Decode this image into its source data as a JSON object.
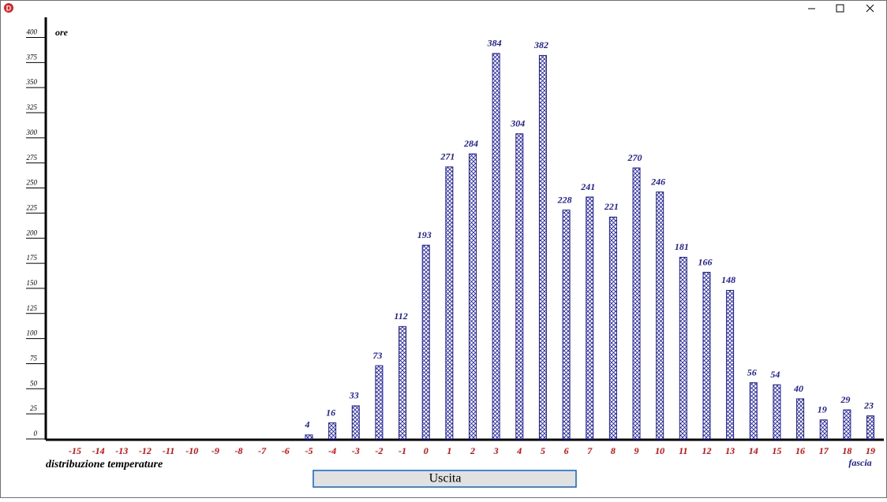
{
  "chart_data": {
    "type": "bar",
    "y_label": "ore",
    "x_label": "distribuzione temperature",
    "x_unit_label": "fascia",
    "categories": [
      "-15",
      "-14",
      "-13",
      "-12",
      "-11",
      "-10",
      "-9",
      "-8",
      "-7",
      "-6",
      "-5",
      "-4",
      "-3",
      "-2",
      "-1",
      "0",
      "1",
      "2",
      "3",
      "4",
      "5",
      "6",
      "7",
      "8",
      "9",
      "10",
      "11",
      "12",
      "13",
      "14",
      "15",
      "16",
      "17",
      "18",
      "19"
    ],
    "values": [
      null,
      null,
      null,
      null,
      null,
      null,
      null,
      null,
      null,
      null,
      4,
      16,
      33,
      73,
      112,
      193,
      271,
      284,
      384,
      304,
      382,
      228,
      241,
      221,
      270,
      246,
      181,
      166,
      148,
      56,
      54,
      40,
      19,
      29,
      23
    ],
    "color": "#1a1aa8",
    "ylim": [
      0,
      420
    ],
    "yticks": [
      0,
      25,
      50,
      75,
      100,
      125,
      150,
      175,
      200,
      225,
      250,
      275,
      300,
      325,
      350,
      375,
      400
    ]
  },
  "window": {
    "button": "Uscita"
  }
}
